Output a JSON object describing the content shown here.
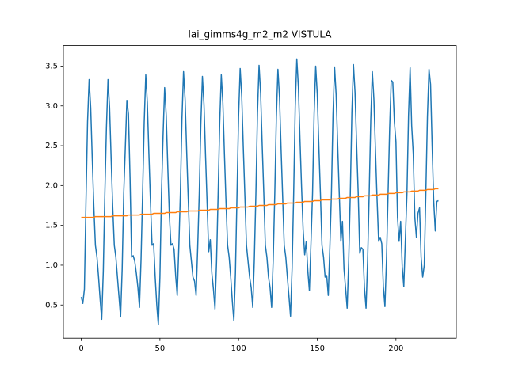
{
  "chart_data": {
    "type": "line",
    "title": "lai_gimms4g_m2_m2 VISTULA",
    "x": [
      0,
      1,
      2,
      3,
      4,
      5,
      6,
      7,
      8,
      9,
      10,
      11,
      12,
      13,
      14,
      15,
      16,
      17,
      18,
      19,
      20,
      21,
      22,
      23,
      24,
      25,
      26,
      27,
      28,
      29,
      30,
      31,
      32,
      33,
      34,
      35,
      36,
      37,
      38,
      39,
      40,
      41,
      42,
      43,
      44,
      45,
      46,
      47,
      48,
      49,
      50,
      51,
      52,
      53,
      54,
      55,
      56,
      57,
      58,
      59,
      60,
      61,
      62,
      63,
      64,
      65,
      66,
      67,
      68,
      69,
      70,
      71,
      72,
      73,
      74,
      75,
      76,
      77,
      78,
      79,
      80,
      81,
      82,
      83,
      84,
      85,
      86,
      87,
      88,
      89,
      90,
      91,
      92,
      93,
      94,
      95,
      96,
      97,
      98,
      99,
      100,
      101,
      102,
      103,
      104,
      105,
      106,
      107,
      108,
      109,
      110,
      111,
      112,
      113,
      114,
      115,
      116,
      117,
      118,
      119,
      120,
      121,
      122,
      123,
      124,
      125,
      126,
      127,
      128,
      129,
      130,
      131,
      132,
      133,
      134,
      135,
      136,
      137,
      138,
      139,
      140,
      141,
      142,
      143,
      144,
      145,
      146,
      147,
      148,
      149,
      150,
      151,
      152,
      153,
      154,
      155,
      156,
      157,
      158,
      159,
      160,
      161,
      162,
      163,
      164,
      165,
      166,
      167,
      168,
      169,
      170,
      171,
      172,
      173,
      174,
      175,
      176,
      177,
      178,
      179,
      180,
      181,
      182,
      183,
      184,
      185,
      186,
      187,
      188,
      189,
      190,
      191,
      192,
      193,
      194,
      195,
      196,
      197,
      198,
      199,
      200,
      201,
      202,
      203,
      204,
      205,
      206,
      207,
      208,
      209,
      210,
      211,
      212,
      213,
      214,
      215,
      216,
      217,
      218,
      219,
      220,
      221,
      222,
      223,
      224,
      225,
      226,
      227
    ],
    "series": [
      {
        "color": "#1f77b4",
        "values": [
          0.6,
          0.52,
          0.7,
          1.8,
          2.8,
          3.33,
          2.98,
          2.33,
          1.73,
          1.25,
          1.1,
          0.85,
          0.57,
          0.32,
          0.92,
          1.9,
          2.73,
          3.33,
          2.98,
          2.33,
          1.73,
          1.25,
          1.1,
          0.85,
          0.6,
          0.35,
          0.95,
          1.9,
          2.47,
          3.07,
          2.9,
          2.1,
          1.1,
          1.12,
          1.05,
          0.9,
          0.72,
          0.47,
          1.07,
          1.9,
          2.79,
          3.39,
          3.04,
          2.39,
          1.79,
          1.25,
          1.27,
          0.85,
          0.5,
          0.25,
          0.85,
          1.9,
          2.63,
          3.23,
          2.88,
          2.23,
          1.63,
          1.25,
          1.27,
          1.2,
          0.87,
          0.62,
          1.22,
          1.9,
          2.83,
          3.43,
          3.08,
          2.43,
          1.83,
          1.25,
          1.05,
          0.85,
          0.8,
          0.62,
          1.22,
          1.9,
          2.77,
          3.37,
          3.02,
          2.37,
          1.77,
          1.17,
          1.32,
          0.9,
          0.7,
          0.45,
          1.05,
          1.9,
          2.79,
          3.39,
          3.04,
          2.39,
          1.79,
          1.25,
          1.1,
          0.85,
          0.55,
          0.3,
          0.9,
          1.9,
          2.87,
          3.47,
          3.12,
          2.47,
          1.87,
          1.25,
          1.05,
          0.85,
          0.72,
          0.47,
          1.07,
          1.9,
          2.91,
          3.51,
          3.16,
          2.51,
          1.91,
          1.25,
          1.1,
          0.85,
          0.72,
          0.47,
          1.07,
          1.9,
          2.86,
          3.46,
          3.11,
          2.46,
          1.86,
          1.25,
          1.1,
          0.85,
          0.61,
          0.36,
          0.96,
          1.9,
          2.99,
          3.59,
          3.24,
          2.59,
          1.99,
          1.45,
          1.13,
          1.3,
          0.93,
          0.68,
          1.28,
          1.9,
          2.9,
          3.5,
          3.15,
          2.5,
          1.9,
          1.25,
          1.1,
          0.85,
          0.87,
          0.62,
          1.22,
          1.9,
          2.89,
          3.49,
          3.14,
          2.49,
          1.89,
          1.3,
          1.55,
          0.95,
          0.71,
          0.46,
          1.06,
          1.9,
          2.92,
          3.52,
          3.17,
          2.52,
          1.92,
          1.15,
          1.22,
          1.2,
          0.71,
          0.46,
          1.06,
          1.9,
          2.83,
          3.43,
          3.08,
          2.43,
          1.83,
          1.3,
          1.35,
          1.27,
          0.73,
          0.48,
          1.08,
          1.9,
          2.72,
          3.32,
          3.3,
          2.8,
          2.55,
          1.6,
          1.3,
          1.55,
          0.98,
          0.73,
          1.33,
          1.9,
          2.88,
          3.48,
          2.75,
          2.4,
          1.6,
          1.35,
          1.65,
          1.72,
          1.1,
          0.85,
          1.0,
          1.9,
          2.86,
          3.46,
          3.27,
          2.5,
          1.8,
          1.43,
          1.8,
          1.81
        ]
      },
      {
        "color": "#ff7f0e",
        "values": [
          1.6,
          1.6,
          1.6,
          1.6,
          1.6,
          1.6,
          1.6,
          1.6,
          1.6,
          1.61,
          1.61,
          1.61,
          1.61,
          1.61,
          1.61,
          1.61,
          1.61,
          1.61,
          1.61,
          1.61,
          1.62,
          1.62,
          1.62,
          1.62,
          1.62,
          1.62,
          1.62,
          1.62,
          1.62,
          1.62,
          1.63,
          1.63,
          1.63,
          1.63,
          1.63,
          1.63,
          1.63,
          1.63,
          1.64,
          1.64,
          1.64,
          1.64,
          1.64,
          1.64,
          1.64,
          1.64,
          1.65,
          1.65,
          1.65,
          1.65,
          1.65,
          1.65,
          1.65,
          1.65,
          1.66,
          1.66,
          1.66,
          1.66,
          1.66,
          1.66,
          1.66,
          1.67,
          1.67,
          1.67,
          1.67,
          1.67,
          1.67,
          1.67,
          1.68,
          1.68,
          1.68,
          1.68,
          1.68,
          1.68,
          1.68,
          1.69,
          1.69,
          1.69,
          1.69,
          1.69,
          1.69,
          1.69,
          1.7,
          1.7,
          1.7,
          1.7,
          1.7,
          1.7,
          1.71,
          1.71,
          1.71,
          1.71,
          1.71,
          1.71,
          1.71,
          1.72,
          1.72,
          1.72,
          1.72,
          1.72,
          1.72,
          1.73,
          1.73,
          1.73,
          1.73,
          1.73,
          1.73,
          1.74,
          1.74,
          1.74,
          1.74,
          1.74,
          1.74,
          1.75,
          1.75,
          1.75,
          1.75,
          1.75,
          1.75,
          1.76,
          1.76,
          1.76,
          1.76,
          1.76,
          1.76,
          1.77,
          1.77,
          1.77,
          1.77,
          1.77,
          1.77,
          1.78,
          1.78,
          1.78,
          1.78,
          1.78,
          1.78,
          1.79,
          1.79,
          1.79,
          1.79,
          1.79,
          1.8,
          1.8,
          1.8,
          1.8,
          1.8,
          1.8,
          1.81,
          1.81,
          1.81,
          1.81,
          1.81,
          1.82,
          1.82,
          1.82,
          1.82,
          1.82,
          1.82,
          1.83,
          1.83,
          1.83,
          1.83,
          1.83,
          1.84,
          1.84,
          1.84,
          1.84,
          1.84,
          1.85,
          1.85,
          1.85,
          1.85,
          1.85,
          1.85,
          1.86,
          1.86,
          1.86,
          1.86,
          1.86,
          1.87,
          1.87,
          1.87,
          1.87,
          1.87,
          1.88,
          1.88,
          1.88,
          1.88,
          1.88,
          1.89,
          1.89,
          1.89,
          1.89,
          1.89,
          1.9,
          1.9,
          1.9,
          1.9,
          1.9,
          1.91,
          1.91,
          1.91,
          1.91,
          1.91,
          1.92,
          1.92,
          1.92,
          1.92,
          1.92,
          1.93,
          1.93,
          1.93,
          1.93,
          1.93,
          1.94,
          1.94,
          1.94,
          1.94,
          1.94,
          1.95,
          1.95,
          1.95,
          1.95,
          1.95,
          1.96,
          1.96,
          1.96
        ]
      }
    ],
    "xlim": [
      -11.35,
      238.35
    ],
    "xticks": [
      0,
      50,
      100,
      150,
      200
    ],
    "ylim": [
      0.083,
      3.757
    ],
    "yticks": [
      0.5,
      {
        "value": 1,
        "label": "1.0"
      },
      1.5,
      {
        "value": 2,
        "label": "2.0"
      },
      2.5,
      {
        "value": 3,
        "label": "3.0"
      },
      3.5
    ]
  }
}
